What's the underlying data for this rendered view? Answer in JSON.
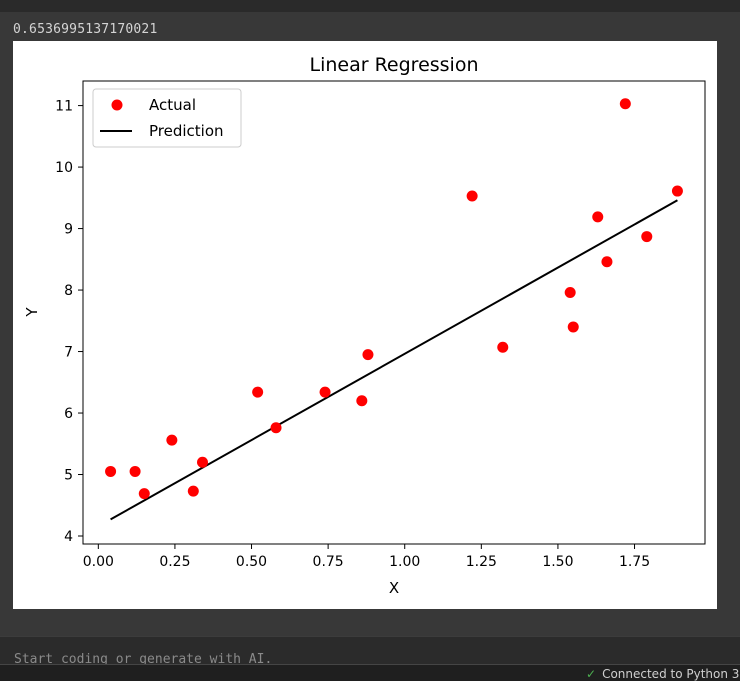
{
  "output": {
    "text": "0.6536995137170021"
  },
  "cell": {
    "placeholder": "Start coding or generate with AI."
  },
  "status": {
    "text": "Connected to Python 3"
  },
  "colors": {
    "points": "#ff0000",
    "line": "#000000"
  },
  "chart_data": {
    "type": "scatter",
    "title": "Linear Regression",
    "xlabel": "X",
    "ylabel": "Y",
    "xlim": [
      -0.05,
      1.98
    ],
    "ylim": [
      3.87,
      11.4
    ],
    "xticks": [
      0.0,
      0.25,
      0.5,
      0.75,
      1.0,
      1.25,
      1.5,
      1.75
    ],
    "xtick_labels": [
      "0.00",
      "0.25",
      "0.50",
      "0.75",
      "1.00",
      "1.25",
      "1.50",
      "1.75"
    ],
    "yticks": [
      4,
      5,
      6,
      7,
      8,
      9,
      10,
      11
    ],
    "ytick_labels": [
      "4",
      "5",
      "6",
      "7",
      "8",
      "9",
      "10",
      "11"
    ],
    "grid": false,
    "legend_position": "top-left",
    "series": [
      {
        "name": "Actual",
        "kind": "scatter",
        "color": "#ff0000",
        "x": [
          0.04,
          0.12,
          0.15,
          0.24,
          0.31,
          0.34,
          0.52,
          0.58,
          0.74,
          0.86,
          0.88,
          1.22,
          1.32,
          1.54,
          1.55,
          1.63,
          1.66,
          1.72,
          1.79,
          1.89
        ],
        "y": [
          5.05,
          5.05,
          4.69,
          5.56,
          4.73,
          5.2,
          6.34,
          5.76,
          6.34,
          6.2,
          6.95,
          9.53,
          7.07,
          7.96,
          7.4,
          9.19,
          8.46,
          11.03,
          8.87,
          9.61
        ]
      },
      {
        "name": "Prediction",
        "kind": "line",
        "color": "#000000",
        "x": [
          0.04,
          1.89
        ],
        "y": [
          4.27,
          9.46
        ]
      }
    ]
  }
}
